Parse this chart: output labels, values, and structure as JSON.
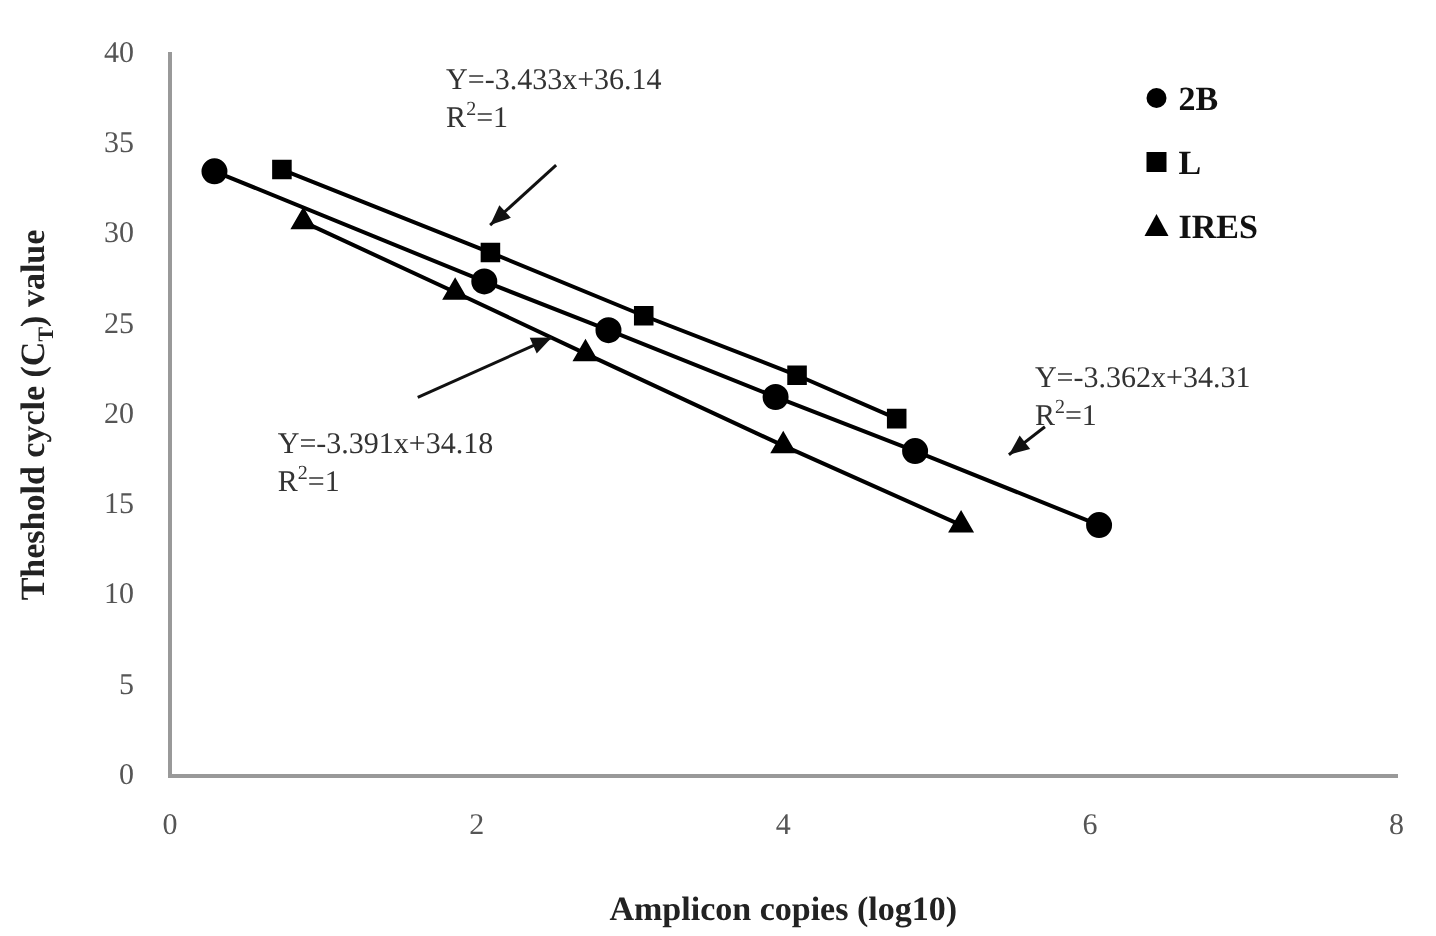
{
  "chart_data": {
    "type": "line",
    "xlabel": "Amplicon copies (log10)",
    "ylabel": "Theshold cycle (C$_{T}$) value",
    "xlim": [
      0,
      8
    ],
    "xticks": [
      0,
      2,
      4,
      6,
      8
    ],
    "ylim": [
      0,
      40
    ],
    "yticks": [
      0,
      5,
      10,
      15,
      20,
      25,
      30,
      35,
      40
    ],
    "grid": false,
    "legend": "top right",
    "line_style": "solid",
    "series": [
      {
        "name": "2B",
        "color": "#000000",
        "marker": "circle",
        "x": [
          0.29,
          2.05,
          2.86,
          3.95,
          4.86,
          6.06
        ],
        "values": [
          33.5,
          27.4,
          24.7,
          21.0,
          18.0,
          13.9
        ]
      },
      {
        "name": "L",
        "color": "#000000",
        "marker": "square",
        "x": [
          0.73,
          2.09,
          3.09,
          4.09,
          4.74
        ],
        "values": [
          33.6,
          29.0,
          25.5,
          22.2,
          19.8
        ]
      },
      {
        "name": "IRES",
        "color": "#000000",
        "marker": "triangle",
        "x": [
          0.87,
          1.86,
          2.71,
          4.0,
          5.16
        ],
        "values": [
          30.7,
          26.8,
          23.4,
          18.3,
          13.9
        ]
      }
    ],
    "annotations": [
      "Y=-3.433x+36.14\nR$^{2}$=1",
      {
        "text": "Y=-3.391x+34.18\nR$^{2}$=1",
        "x": 2.49,
        "y": 24.3
      },
      "Y=-3.362x+34.31\nR$^{2}$=1"
    ]
  }
}
